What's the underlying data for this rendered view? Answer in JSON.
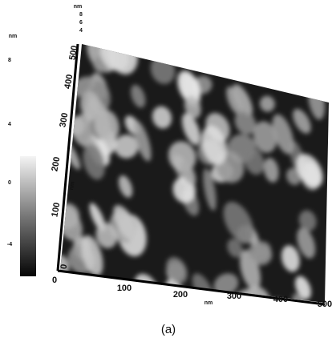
{
  "colorbar": {
    "unit": "nm",
    "ticks": [
      "8",
      "4",
      "0",
      "-4"
    ]
  },
  "z_axis": {
    "unit": "nm",
    "ticks": [
      "8",
      "6",
      "4"
    ]
  },
  "y_axis": {
    "unit": "nm",
    "ticks": [
      "0",
      "100",
      "200",
      "300",
      "400",
      "500"
    ]
  },
  "x_axis": {
    "unit": "nm",
    "ticks": [
      "0",
      "100",
      "200",
      "300",
      "400",
      "500"
    ]
  },
  "caption": "(a)"
}
